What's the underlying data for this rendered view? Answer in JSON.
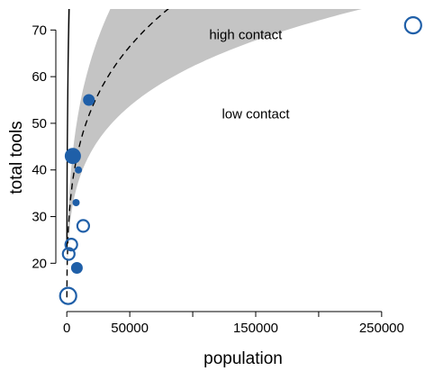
{
  "chart_data": {
    "type": "scatter",
    "title": "",
    "xlabel": "population",
    "ylabel": "total tools",
    "xlim": [
      -3000,
      283000
    ],
    "ylim": [
      10.8,
      74.5
    ],
    "xticks": [
      0,
      50000,
      150000,
      250000
    ],
    "xtick_labels": [
      "0",
      "50000",
      "150000",
      "250000"
    ],
    "xticks_minor": [
      100000,
      200000
    ],
    "yticks": [
      20,
      30,
      40,
      50,
      60,
      70
    ],
    "ytick_labels": [
      "20",
      "30",
      "40",
      "50",
      60,
      "70"
    ],
    "grid": false,
    "colors": {
      "high_contact": "#1f5fa8",
      "band_light": "#c4c4c4",
      "band_dark": "#a6a6a6",
      "curve": "#000000"
    },
    "points": [
      {
        "population": 1100,
        "total_tools": 13,
        "contact": "low",
        "size": "large"
      },
      {
        "population": 1500,
        "total_tools": 22,
        "contact": "low",
        "size": "medium"
      },
      {
        "population": 3600,
        "total_tools": 24,
        "contact": "low",
        "size": "medium"
      },
      {
        "population": 4800,
        "total_tools": 43,
        "contact": "high",
        "size": "large"
      },
      {
        "population": 7400,
        "total_tools": 33,
        "contact": "high",
        "size": "small"
      },
      {
        "population": 8000,
        "total_tools": 19,
        "contact": "high",
        "size": "medium"
      },
      {
        "population": 9200,
        "total_tools": 40,
        "contact": "high",
        "size": "small"
      },
      {
        "population": 13000,
        "total_tools": 28,
        "contact": "low",
        "size": "medium"
      },
      {
        "population": 17500,
        "total_tools": 55,
        "contact": "high",
        "size": "medium"
      },
      {
        "population": 275000,
        "total_tools": 71,
        "contact": "low",
        "size": "large"
      }
    ],
    "series": [
      {
        "name": "high contact",
        "style": "solid",
        "model": {
          "intercept": 1.85,
          "slope": 0.33
        }
      },
      {
        "name": "low contact",
        "style": "dashed",
        "model": {
          "intercept": 1.6,
          "slope": 0.24
        }
      }
    ],
    "annotations": [
      {
        "text": "high contact",
        "x": 142000,
        "y": 68
      },
      {
        "text": "low contact",
        "x": 150000,
        "y": 51
      }
    ]
  }
}
